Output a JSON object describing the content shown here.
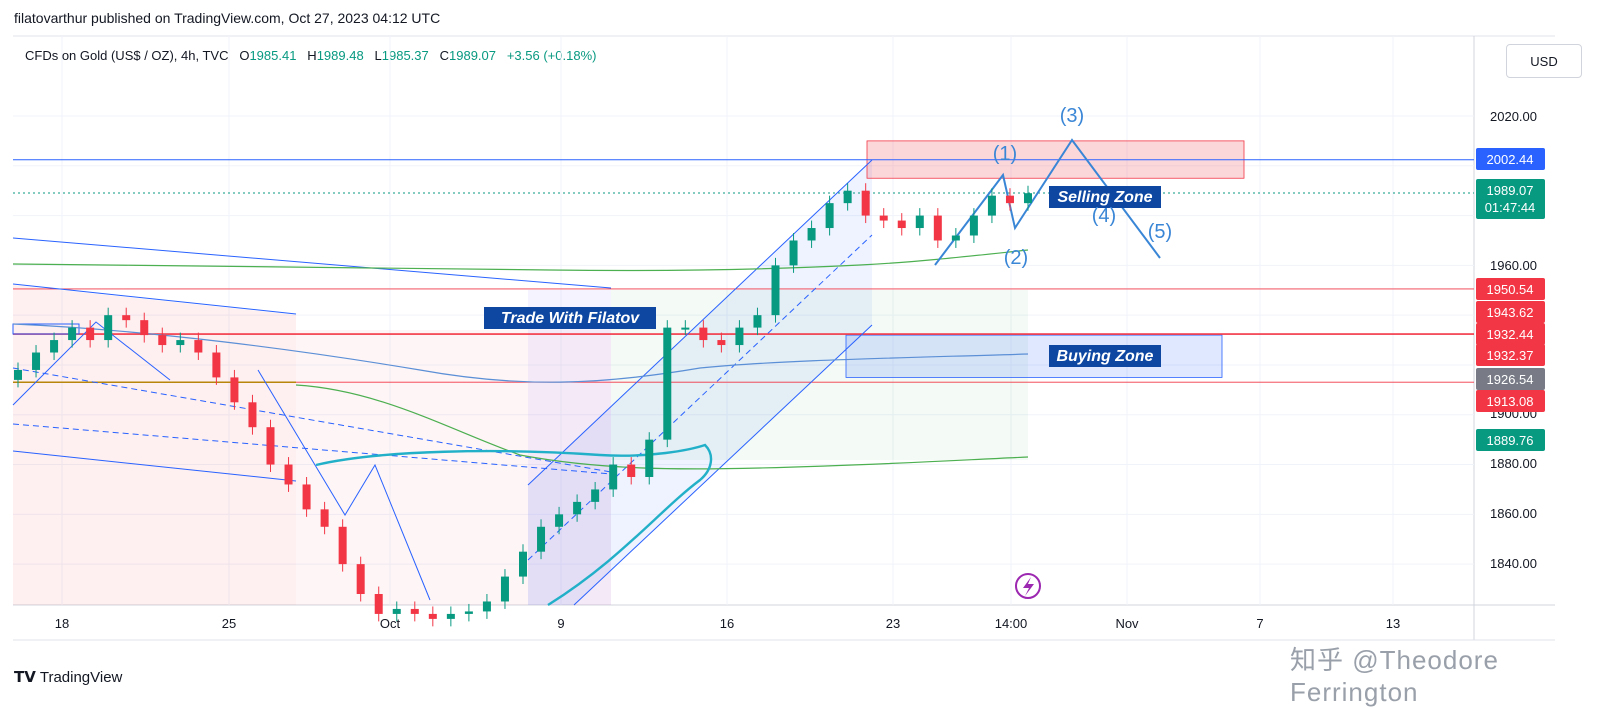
{
  "header": {
    "published_by": "filatovarthur published on TradingView.com, Oct 27, 2023 04:12 UTC"
  },
  "legend": {
    "symbol": "CFDs on Gold (US$ / OZ), 4h, TVC",
    "o_label": "O",
    "open": "1985.41",
    "h_label": "H",
    "high": "1989.48",
    "l_label": "L",
    "low": "1985.37",
    "c_label": "C",
    "close": "1989.07",
    "change": "+3.56 (+0.18%)"
  },
  "currency": "USD",
  "brand": "TradingView",
  "watermark": "知乎 @Theodore Ferrington",
  "colors": {
    "up": "#089981",
    "down": "#f23645",
    "blue_line": "#2962ff",
    "cyan_curve": "#22b0c8",
    "green_ma": "#4caf50",
    "red_level": "#f23645"
  },
  "chart_data": {
    "type": "candlestick",
    "instrument": "CFDs on Gold (US$ / OZ)",
    "timeframe": "4h",
    "y_ticks": [
      2020,
      1960,
      1900,
      1880,
      1860,
      1840
    ],
    "x_ticks": [
      "18",
      "25",
      "Oct",
      "9",
      "16",
      "23",
      "14:00",
      "Nov",
      "7",
      "13"
    ],
    "price_labels": [
      {
        "value": "2002.44",
        "color": "#2962ff"
      },
      {
        "value": "1989.07",
        "sub": "01:47:44",
        "color": "#089981"
      },
      {
        "value": "1950.54",
        "color": "#f23645"
      },
      {
        "value": "1943.62",
        "color": "#f23645"
      },
      {
        "value": "1932.44",
        "color": "#f23645"
      },
      {
        "value": "1932.37",
        "color": "#f23645"
      },
      {
        "value": "1926.54",
        "color": "#787b86"
      },
      {
        "value": "1913.08",
        "color": "#f23645"
      },
      {
        "value": "1889.76",
        "color": "#089981"
      }
    ],
    "zones": [
      {
        "label": "Selling Zone",
        "from": 1995,
        "to": 2010
      },
      {
        "label": "Buying Zone",
        "from": 1920,
        "to": 1932
      }
    ],
    "annotations": [
      "Trade With Filatov",
      "(1)",
      "(2)",
      "(3)",
      "(4)",
      "(5)"
    ],
    "series_close": [
      1918,
      1925,
      1930,
      1935,
      1930,
      1940,
      1938,
      1932,
      1928,
      1930,
      1925,
      1915,
      1905,
      1895,
      1880,
      1872,
      1862,
      1855,
      1840,
      1828,
      1820,
      1822,
      1820,
      1818,
      1820,
      1821,
      1825,
      1835,
      1845,
      1855,
      1860,
      1865,
      1870,
      1880,
      1875,
      1890,
      1935,
      1935,
      1930,
      1928,
      1935,
      1940,
      1960,
      1970,
      1975,
      1985,
      1990,
      1980,
      1978,
      1975,
      1980,
      1970,
      1972,
      1980,
      1988,
      1985,
      1989
    ]
  }
}
